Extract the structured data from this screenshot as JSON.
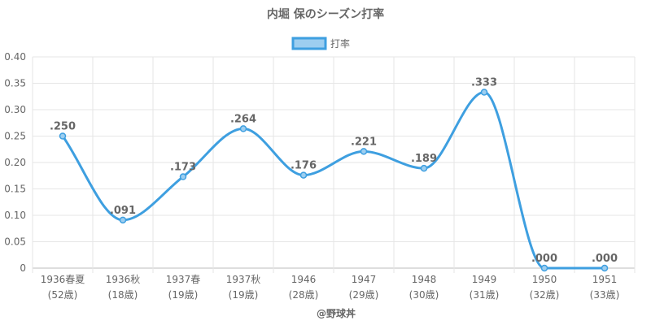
{
  "chart_data": {
    "type": "line",
    "title": "内堀 保のシーズン打率",
    "legend": {
      "position": "top",
      "entries": [
        "打率"
      ]
    },
    "categories": [
      {
        "line1": "1936春夏",
        "line2": "(52歳)"
      },
      {
        "line1": "1936秋",
        "line2": "(18歳)"
      },
      {
        "line1": "1937春",
        "line2": "(19歳)"
      },
      {
        "line1": "1937秋",
        "line2": "(19歳)"
      },
      {
        "line1": "1946",
        "line2": "(28歳)"
      },
      {
        "line1": "1947",
        "line2": "(29歳)"
      },
      {
        "line1": "1948",
        "line2": "(30歳)"
      },
      {
        "line1": "1949",
        "line2": "(31歳)"
      },
      {
        "line1": "1950",
        "line2": "(32歳)"
      },
      {
        "line1": "1951",
        "line2": "(33歳)"
      }
    ],
    "series": [
      {
        "name": "打率",
        "values": [
          0.25,
          0.091,
          0.173,
          0.264,
          0.176,
          0.221,
          0.189,
          0.333,
          0.0,
          0.0
        ],
        "data_labels": [
          ".250",
          ".091",
          ".173",
          ".264",
          ".176",
          ".221",
          ".189",
          ".333",
          ".000",
          ".000"
        ]
      }
    ],
    "yticks": [
      "0",
      "0.05",
      "0.10",
      "0.15",
      "0.20",
      "0.25",
      "0.30",
      "0.35",
      "0.40"
    ],
    "ylim": [
      0,
      0.4
    ],
    "grid": true,
    "colors": {
      "line": "#3e9fe0",
      "fill": "#9dcef0",
      "grid": "#e6e6e6",
      "text": "#666666"
    },
    "credit": "@野球丼"
  }
}
